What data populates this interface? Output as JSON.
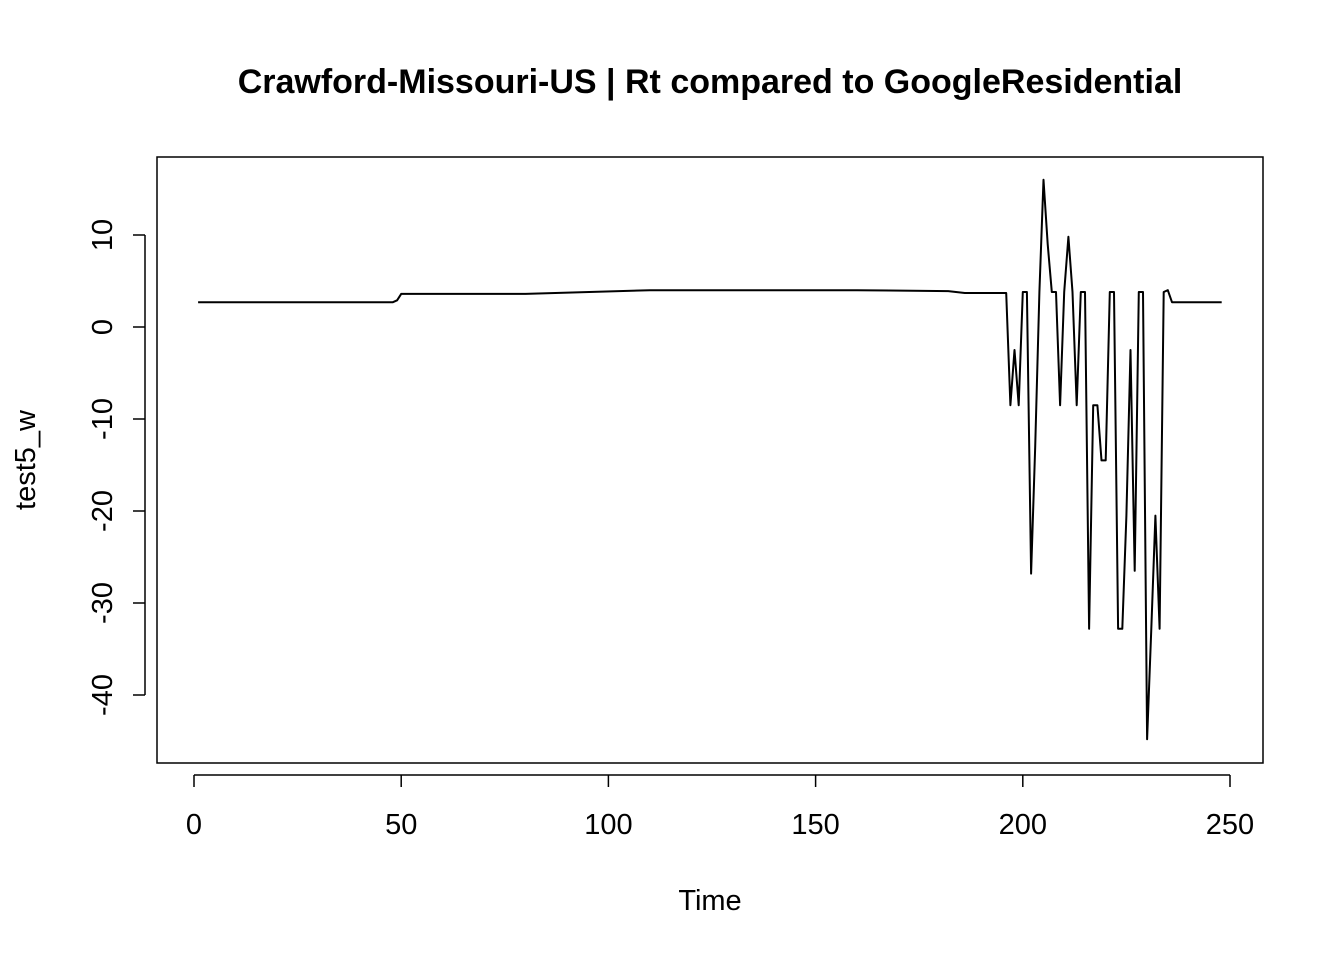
{
  "chart_data": {
    "type": "line",
    "title": "Crawford-Missouri-US | Rt compared to GoogleResidential",
    "xlabel": "Time",
    "ylabel": "test5_w",
    "xlim": [
      1,
      248
    ],
    "ylim": [
      -45,
      16
    ],
    "x_ticks": [
      "0",
      "50",
      "100",
      "150",
      "200",
      "250"
    ],
    "y_ticks": [
      "-40",
      "-30",
      "-20",
      "-10",
      "0",
      "10"
    ],
    "grid": false,
    "legend": "none",
    "line_color": "#000000",
    "series": [
      {
        "points": [
          [
            1,
            2.7
          ],
          [
            48,
            2.7
          ],
          [
            49,
            2.9
          ],
          [
            50,
            3.6
          ],
          [
            80,
            3.6
          ],
          [
            110,
            4.0
          ],
          [
            160,
            4.0
          ],
          [
            182,
            3.9
          ],
          [
            186,
            3.7
          ],
          [
            196,
            3.7
          ],
          [
            197,
            -8.5
          ],
          [
            198,
            -2.5
          ],
          [
            199,
            -8.5
          ],
          [
            200,
            3.8
          ],
          [
            201,
            3.8
          ],
          [
            202,
            -26.8
          ],
          [
            203,
            -13.0
          ],
          [
            204,
            3.8
          ],
          [
            205,
            16.0
          ],
          [
            206,
            9.0
          ],
          [
            207,
            3.8
          ],
          [
            208,
            3.8
          ],
          [
            209,
            -8.5
          ],
          [
            210,
            3.8
          ],
          [
            211,
            9.8
          ],
          [
            212,
            3.8
          ],
          [
            213,
            -8.5
          ],
          [
            214,
            3.8
          ],
          [
            215,
            3.8
          ],
          [
            216,
            -32.8
          ],
          [
            217,
            -8.5
          ],
          [
            218,
            -8.5
          ],
          [
            219,
            -14.5
          ],
          [
            220,
            -14.5
          ],
          [
            221,
            3.8
          ],
          [
            222,
            3.8
          ],
          [
            223,
            -32.8
          ],
          [
            224,
            -32.8
          ],
          [
            225,
            -20.5
          ],
          [
            226,
            -2.5
          ],
          [
            227,
            -26.5
          ],
          [
            228,
            3.8
          ],
          [
            229,
            3.8
          ],
          [
            230,
            -44.8
          ],
          [
            231,
            -32.8
          ],
          [
            232,
            -20.5
          ],
          [
            233,
            -32.8
          ],
          [
            234,
            3.8
          ],
          [
            235,
            4.0
          ],
          [
            236,
            2.7
          ],
          [
            248,
            2.7
          ]
        ]
      }
    ]
  }
}
